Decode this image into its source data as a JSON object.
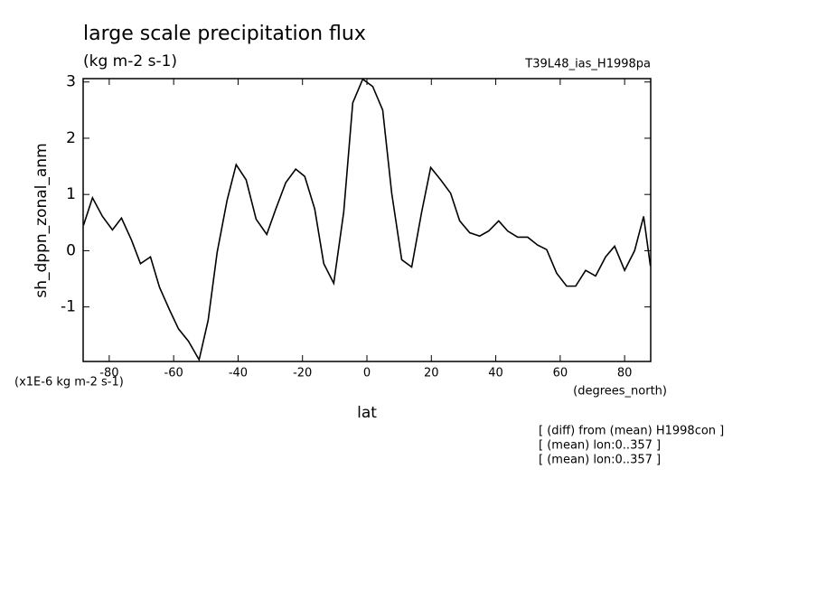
{
  "chart_data": {
    "type": "line",
    "title": "large scale precipitation flux",
    "subtitle": "(kg m-2 s-1)",
    "run_label": "T39L48_ias_H1998pa",
    "ylabel": "sh_dppn_zonal_anm",
    "xlabel": "lat",
    "x_units": "(degrees_north)",
    "y_units": "(x1E-6 kg m-2 s-1)",
    "notes": [
      "[ (diff) from (mean) H1998con ]",
      "[ (mean) lon:0..357 ]",
      "[ (mean) lon:0..357 ]"
    ],
    "color": "#000000",
    "xlim": [
      -88.1,
      88.1
    ],
    "ylim": [
      -1.97,
      3.06
    ],
    "xticks": [
      -80,
      -60,
      -40,
      -20,
      0,
      20,
      40,
      60,
      80
    ],
    "yticks": [
      -1,
      0,
      1,
      2,
      3
    ],
    "x": [
      -88.0,
      -85.2,
      -82.1,
      -79.0,
      -76.2,
      -73.1,
      -70.3,
      -67.2,
      -64.4,
      -61.3,
      -58.5,
      -55.4,
      -52.1,
      -49.3,
      -46.5,
      -43.4,
      -40.6,
      -37.5,
      -34.4,
      -31.1,
      -28.3,
      -25.2,
      -22.1,
      -19.3,
      -16.2,
      -13.4,
      -10.3,
      -7.2,
      -4.4,
      -1.3,
      1.8,
      4.9,
      7.7,
      10.8,
      13.9,
      17.0,
      19.8,
      22.9,
      26.0,
      28.8,
      31.9,
      35.0,
      37.8,
      40.9,
      43.7,
      46.8,
      49.9,
      53.0,
      55.8,
      58.9,
      62.0,
      64.8,
      67.9,
      71.0,
      74.1,
      76.9,
      80.0,
      83.1,
      85.9,
      88.0
    ],
    "values": [
      0.45,
      0.94,
      0.61,
      0.37,
      0.58,
      0.19,
      -0.23,
      -0.11,
      -0.65,
      -1.05,
      -1.39,
      -1.61,
      -1.94,
      -1.24,
      -0.03,
      0.9,
      1.53,
      1.26,
      0.56,
      0.29,
      0.74,
      1.21,
      1.45,
      1.32,
      0.74,
      -0.23,
      -0.58,
      0.69,
      2.63,
      3.05,
      2.92,
      2.5,
      1.02,
      -0.16,
      -0.29,
      0.69,
      1.48,
      1.26,
      1.02,
      0.53,
      0.32,
      0.26,
      0.35,
      0.53,
      0.35,
      0.24,
      0.24,
      0.1,
      0.02,
      -0.4,
      -0.63,
      -0.63,
      -0.35,
      -0.45,
      -0.11,
      0.08,
      -0.35,
      0.0,
      0.61,
      -0.27
    ]
  }
}
